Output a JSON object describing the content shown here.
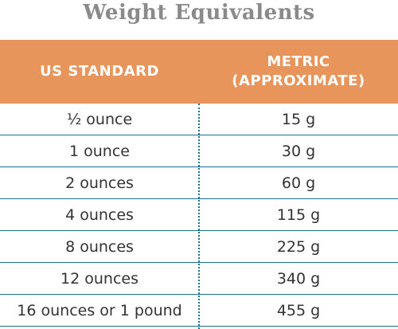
{
  "title": "Weight Equivalents",
  "table": {
    "headers": [
      "US STANDARD",
      "METRIC\n(APPROXIMATE)"
    ],
    "rows": [
      [
        "½ ounce",
        "15 g"
      ],
      [
        "1 ounce",
        "30 g"
      ],
      [
        "2 ounces",
        "60 g"
      ],
      [
        "4 ounces",
        "115 g"
      ],
      [
        "8 ounces",
        "225 g"
      ],
      [
        "12 ounces",
        "340 g"
      ],
      [
        "16 ounces or 1 pound",
        "455 g"
      ]
    ]
  },
  "colors": {
    "header_bg": "#e8955c",
    "header_text": "#ffffff",
    "rule": "#1f6f86",
    "title": "#8a8a8a",
    "body_text": "#333333"
  }
}
